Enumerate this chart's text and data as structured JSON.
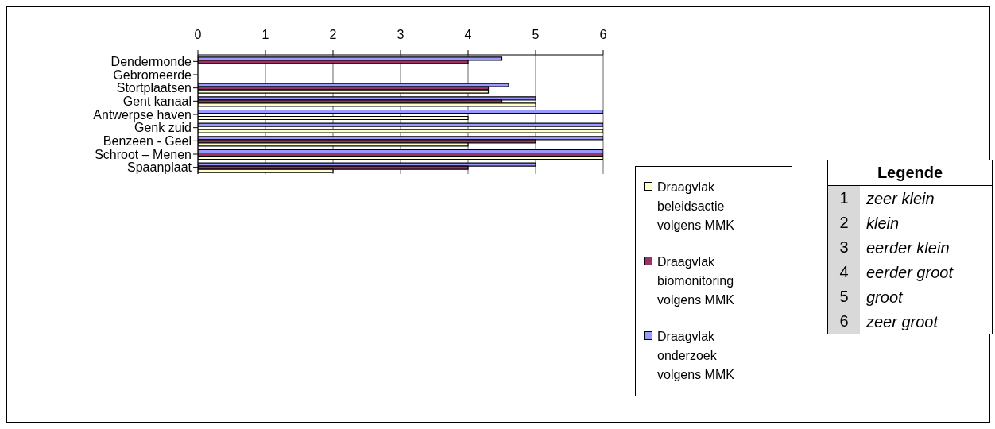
{
  "chart_data": {
    "type": "bar",
    "orientation": "horizontal",
    "categories": [
      "Dendermonde",
      "Gebromeerde",
      "Stortplaatsen",
      "Gent kanaal",
      "Antwerpse haven",
      "Genk zuid",
      "Benzeen - Geel",
      "Schroot – Menen",
      "Spaanplaat"
    ],
    "series": [
      {
        "name": "Draagvlak onderzoek volgens MMK",
        "color": "#9999ff",
        "values": [
          4.5,
          null,
          4.6,
          5,
          6,
          6,
          6,
          6,
          5
        ]
      },
      {
        "name": "Draagvlak biomonitoring volgens MMK",
        "color": "#993366",
        "values": [
          4,
          null,
          4.3,
          4.5,
          null,
          null,
          5,
          6,
          4
        ]
      },
      {
        "name": "Draagvlak beleidsactie volgens MMK",
        "color": "#ffffcc",
        "values": [
          null,
          null,
          4.3,
          5,
          4,
          6,
          4,
          6,
          2
        ]
      }
    ],
    "xlim": [
      0,
      6
    ],
    "xticks": [
      0,
      1,
      2,
      3,
      4,
      5,
      6
    ],
    "grid": "x",
    "legend": "right",
    "annotations": [
      "Legende",
      "1",
      "zeer klein",
      "2",
      "klein",
      "3",
      "eerder klein",
      "4",
      "eerder groot",
      "5",
      "groot",
      "6",
      "zeer groot"
    ]
  }
}
